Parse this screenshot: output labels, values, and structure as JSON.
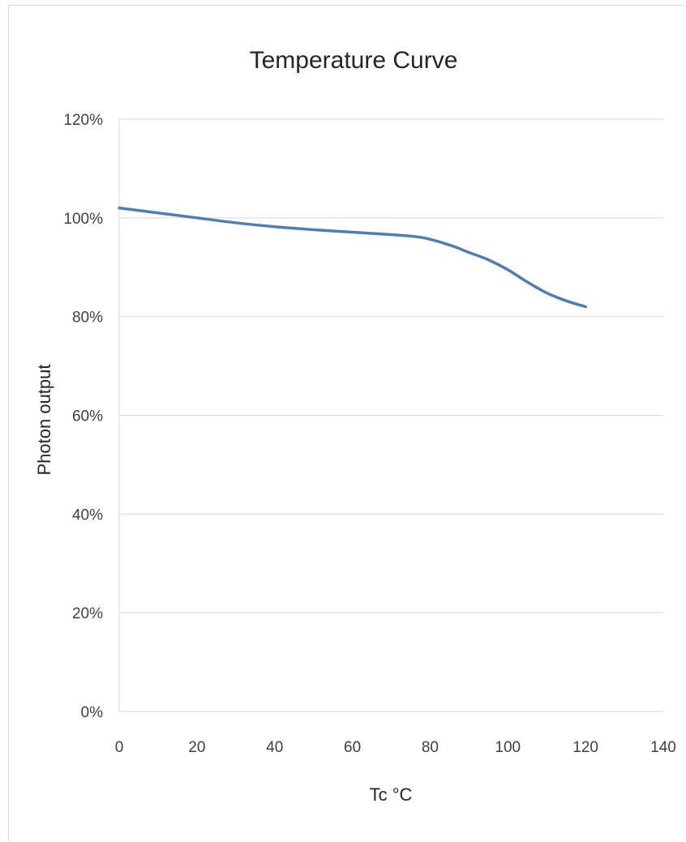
{
  "chart_data": {
    "type": "line",
    "title": "Temperature Curve",
    "xlabel": "Tc °C",
    "ylabel": "Photon output",
    "xlim": [
      0,
      140
    ],
    "ylim": [
      0,
      120
    ],
    "x_ticks": [
      "0",
      "20",
      "40",
      "60",
      "80",
      "100",
      "120",
      "140"
    ],
    "y_ticks": [
      "0%",
      "20%",
      "40%",
      "60%",
      "80%",
      "100%",
      "120%"
    ],
    "grid": "horizontal",
    "legend": "none",
    "series": [
      {
        "color": "#4f7db5",
        "x": [
          0,
          10,
          20,
          30,
          40,
          50,
          60,
          70,
          78,
          85,
          90,
          95,
          100,
          105,
          110,
          115,
          120
        ],
        "y": [
          102,
          101,
          100,
          99,
          98.2,
          97.6,
          97.1,
          96.6,
          96,
          94.5,
          93,
          91.5,
          89.5,
          87,
          84.8,
          83.2,
          82
        ]
      }
    ]
  }
}
